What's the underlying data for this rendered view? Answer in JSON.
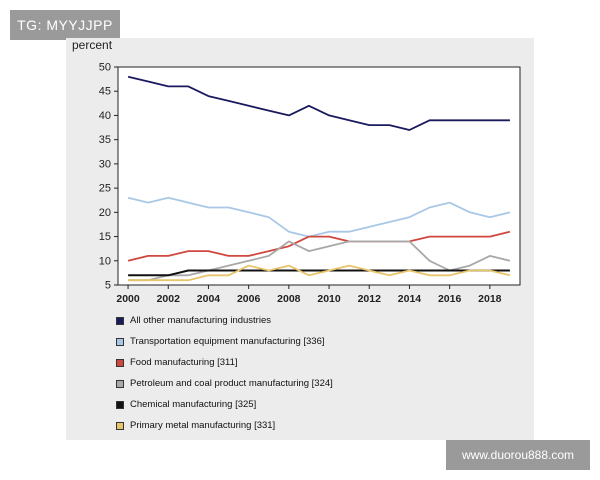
{
  "badge": {
    "text": "TG: MYYJJPP"
  },
  "watermark": {
    "text": "www.duorou888.com"
  },
  "chart_data": {
    "type": "line",
    "ylabel": "percent",
    "xlabel": "",
    "ylim": [
      5,
      50
    ],
    "xlim": [
      1999.5,
      2019.5
    ],
    "yticks": [
      5,
      10,
      15,
      20,
      25,
      30,
      35,
      40,
      45,
      50
    ],
    "xticks": [
      2000,
      2002,
      2004,
      2006,
      2008,
      2010,
      2012,
      2014,
      2016,
      2018
    ],
    "grid": false,
    "legend_position": "bottom",
    "x": [
      2000,
      2001,
      2002,
      2003,
      2004,
      2005,
      2006,
      2007,
      2008,
      2009,
      2010,
      2011,
      2012,
      2013,
      2014,
      2015,
      2016,
      2017,
      2018,
      2019
    ],
    "series": [
      {
        "name": "All other manufacturing industries",
        "color": "#1a1a5e",
        "values": [
          48,
          47,
          46,
          46,
          44,
          43,
          42,
          41,
          40,
          42,
          40,
          39,
          38,
          38,
          37,
          39,
          39,
          39,
          39,
          39
        ]
      },
      {
        "name": "Transportation equipment manufacturing [336]",
        "color": "#a8c8e6",
        "values": [
          23,
          22,
          23,
          22,
          21,
          21,
          20,
          19,
          16,
          15,
          16,
          16,
          17,
          18,
          19,
          21,
          22,
          20,
          19,
          20
        ]
      },
      {
        "name": "Food manufacturing [311]",
        "color": "#d0473d",
        "values": [
          10,
          11,
          11,
          12,
          12,
          11,
          11,
          12,
          13,
          15,
          15,
          14,
          14,
          14,
          14,
          15,
          15,
          15,
          15,
          16
        ]
      },
      {
        "name": "Petroleum and coal product manufacturing [324]",
        "color": "#a8a8a8",
        "values": [
          6,
          6,
          7,
          7,
          8,
          9,
          10,
          11,
          14,
          12,
          13,
          14,
          14,
          14,
          14,
          10,
          8,
          9,
          11,
          10
        ]
      },
      {
        "name": "Chemical manufacturing [325]",
        "color": "#111111",
        "values": [
          7,
          7,
          7,
          8,
          8,
          8,
          8,
          8,
          8,
          8,
          8,
          8,
          8,
          8,
          8,
          8,
          8,
          8,
          8,
          8
        ]
      },
      {
        "name": "Primary metal manufacturing [331]",
        "color": "#e8c46a",
        "values": [
          6,
          6,
          6,
          6,
          7,
          7,
          9,
          8,
          9,
          7,
          8,
          9,
          8,
          7,
          8,
          7,
          7,
          8,
          8,
          7
        ]
      }
    ]
  }
}
